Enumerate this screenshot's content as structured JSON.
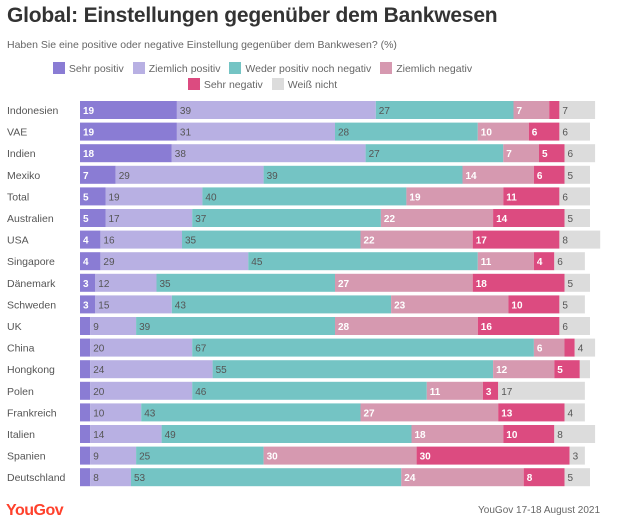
{
  "header": {
    "title": "Global: Einstellungen gegenüber dem Bankwesen",
    "subtitle": "Haben Sie eine positive oder negative Einstellung gegenüber dem Bankwesen? (%)"
  },
  "footer": {
    "logo": "YouGov",
    "source": "YouGov 17-18 August 2021"
  },
  "chart_data": {
    "type": "bar",
    "orientation": "horizontal",
    "stacked": true,
    "title": "Global: Einstellungen gegenüber dem Bankwesen",
    "subtitle": "Haben Sie eine positive oder negative Einstellung gegenüber dem Bankwesen? (%)",
    "xlabel": "",
    "ylabel": "",
    "xlim": [
      0,
      100
    ],
    "grid": false,
    "legend_position": "top",
    "categories": [
      "Indonesien",
      "VAE",
      "Indien",
      "Mexiko",
      "Total",
      "Australien",
      "USA",
      "Singapore",
      "Dänemark",
      "Schweden",
      "UK",
      "China",
      "Hongkong",
      "Polen",
      "Frankreich",
      "Italien",
      "Spanien",
      "Deutschland"
    ],
    "series": [
      {
        "name": "Sehr positiv",
        "color": "#8a7cd4",
        "label_color": "#ffffff",
        "values": [
          19,
          19,
          18,
          7,
          5,
          5,
          4,
          4,
          3,
          3,
          2,
          2,
          2,
          2,
          2,
          2,
          2,
          2
        ],
        "labels": [
          "19",
          "19",
          "18",
          "7",
          "5",
          "5",
          "4",
          "4",
          "3",
          "3",
          "",
          "",
          "",
          "",
          "",
          "",
          "",
          ""
        ]
      },
      {
        "name": "Ziemlich positiv",
        "color": "#b8b0e3",
        "label_color": "#555555",
        "values": [
          39,
          31,
          38,
          29,
          19,
          17,
          16,
          29,
          12,
          15,
          9,
          20,
          24,
          20,
          10,
          14,
          9,
          8
        ],
        "labels": [
          "39",
          "31",
          "38",
          "29",
          "19",
          "17",
          "16",
          "29",
          "12",
          "15",
          "9",
          "20",
          "24",
          "20",
          "10",
          "14",
          "9",
          "8"
        ]
      },
      {
        "name": "Weder positiv noch negativ",
        "color": "#74c4c4",
        "label_color": "#555555",
        "values": [
          27,
          28,
          27,
          39,
          40,
          37,
          35,
          45,
          35,
          43,
          39,
          67,
          55,
          46,
          43,
          49,
          25,
          53
        ],
        "labels": [
          "27",
          "28",
          "27",
          "39",
          "40",
          "37",
          "35",
          "45",
          "35",
          "43",
          "39",
          "67",
          "55",
          "46",
          "43",
          "49",
          "25",
          "53"
        ]
      },
      {
        "name": "Ziemlich negativ",
        "color": "#d699b0",
        "label_color": "#ffffff",
        "values": [
          7,
          10,
          7,
          14,
          19,
          22,
          22,
          11,
          27,
          23,
          28,
          6,
          12,
          11,
          27,
          18,
          30,
          24
        ],
        "labels": [
          "7",
          "10",
          "7",
          "14",
          "19",
          "22",
          "22",
          "11",
          "27",
          "23",
          "28",
          "6",
          "12",
          "11",
          "27",
          "18",
          "30",
          "24"
        ]
      },
      {
        "name": "Sehr negativ",
        "color": "#dc4b80",
        "label_color": "#ffffff",
        "values": [
          2,
          6,
          5,
          6,
          11,
          14,
          17,
          4,
          18,
          10,
          16,
          2,
          5,
          3,
          13,
          10,
          30,
          8
        ],
        "labels": [
          "",
          "6",
          "5",
          "6",
          "11",
          "14",
          "17",
          "4",
          "18",
          "10",
          "16",
          "",
          "5",
          "3",
          "13",
          "10",
          "30",
          "8"
        ]
      },
      {
        "name": "Weiß nicht",
        "color": "#dcdcdc",
        "label_color": "#555555",
        "values": [
          7,
          6,
          6,
          5,
          6,
          5,
          8,
          6,
          5,
          5,
          6,
          4,
          2,
          17,
          4,
          8,
          3,
          5
        ],
        "labels": [
          "7",
          "6",
          "6",
          "5",
          "6",
          "5",
          "8",
          "6",
          "5",
          "5",
          "6",
          "4",
          "",
          "17",
          "4",
          "8",
          "3",
          "5"
        ]
      }
    ]
  }
}
